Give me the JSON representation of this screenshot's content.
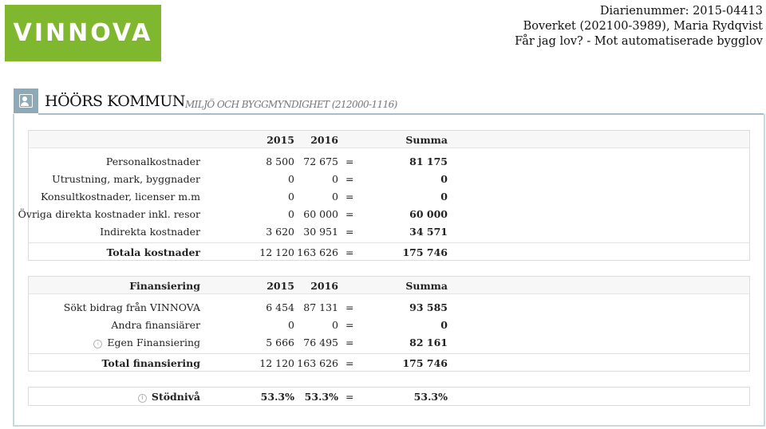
{
  "logo": {
    "text": "VINNOVA"
  },
  "info": {
    "line1": "Diarienummer: 2015-04413",
    "line2": "Boverket (202100-3989), Maria Rydqvist",
    "line3": "Får jag lov? - Mot automatiserade bygglov"
  },
  "header": {
    "title": "HÖÖRS KOMMUN",
    "subtitle": "MILJÖ OCH BYGGMYNDIGHET (212000-1116)"
  },
  "costs": {
    "headers": {
      "label": "",
      "y2015": "2015",
      "y2016": "2016",
      "sum": "Summa"
    },
    "rows": [
      {
        "label": "Personalkostnader",
        "y2015": "8 500",
        "y2016": "72 675",
        "eq": "=",
        "sum": "81 175"
      },
      {
        "label": "Utrustning, mark, byggnader",
        "y2015": "0",
        "y2016": "0",
        "eq": "=",
        "sum": "0"
      },
      {
        "label": "Konsultkostnader, licenser m.m",
        "y2015": "0",
        "y2016": "0",
        "eq": "=",
        "sum": "0"
      },
      {
        "label": "Övriga direkta kostnader inkl. resor",
        "y2015": "0",
        "y2016": "60 000",
        "eq": "=",
        "sum": "60 000"
      },
      {
        "label": "Indirekta kostnader",
        "y2015": "3 620",
        "y2016": "30 951",
        "eq": "=",
        "sum": "34 571"
      }
    ],
    "total": {
      "label": "Totala kostnader",
      "y2015": "12 120",
      "y2016": "163 626",
      "eq": "=",
      "sum": "175 746"
    }
  },
  "financing": {
    "headers": {
      "label": "Finansiering",
      "y2015": "2015",
      "y2016": "2016",
      "sum": "Summa"
    },
    "rows": [
      {
        "label": "Sökt bidrag från VINNOVA",
        "y2015": "6 454",
        "y2016": "87 131",
        "eq": "=",
        "sum": "93 585"
      },
      {
        "label": "Andra finansiärer",
        "y2015": "0",
        "y2016": "0",
        "eq": "=",
        "sum": "0"
      },
      {
        "label": "Egen Finansiering",
        "y2015": "5 666",
        "y2016": "76 495",
        "eq": "=",
        "sum": "82 161"
      }
    ],
    "total": {
      "label": "Total finansiering",
      "y2015": "12 120",
      "y2016": "163 626",
      "eq": "=",
      "sum": "175 746"
    }
  },
  "support": {
    "label": "Stödnivå",
    "y2015": "53.3%",
    "y2016": "53.3%",
    "eq": "=",
    "sum": "53.3%"
  },
  "icons": {
    "info": "i",
    "header": "user-card-icon"
  }
}
